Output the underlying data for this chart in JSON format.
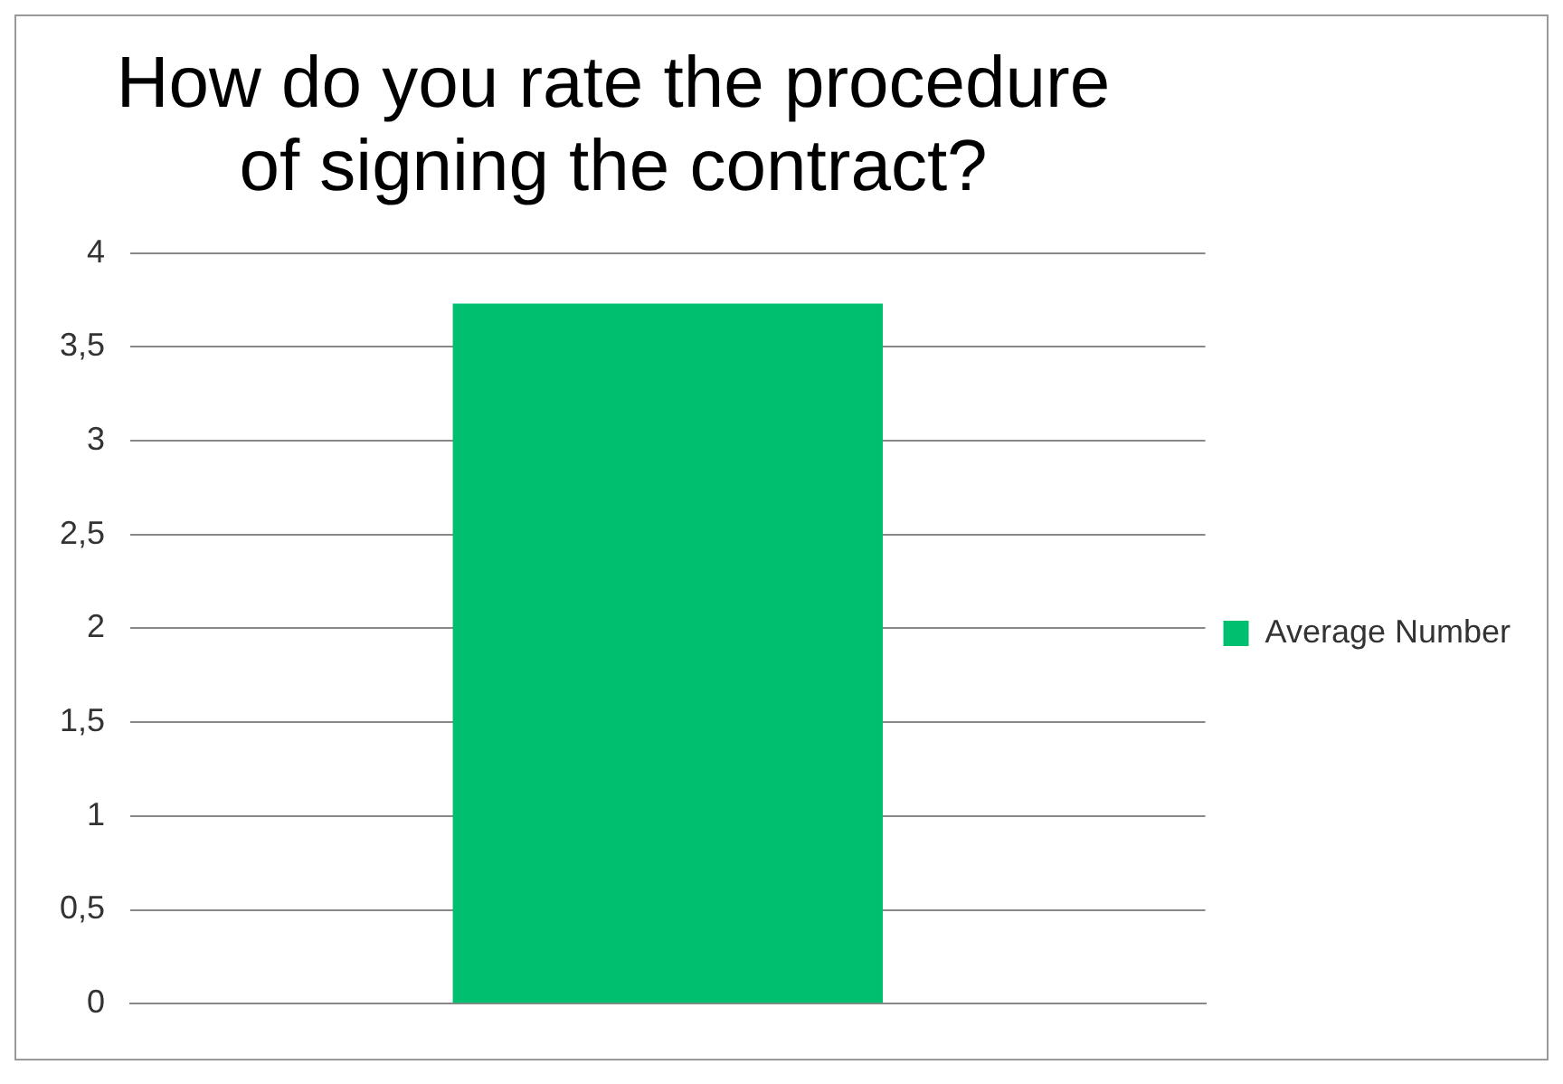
{
  "chart_data": {
    "type": "bar",
    "title": "How do you rate the procedure of signing the contract?",
    "categories": [
      null
    ],
    "series": [
      {
        "name": "Average Number",
        "color": "#00c070",
        "values": [
          3.73
        ]
      }
    ],
    "ylim": [
      0,
      4
    ],
    "yticks": [
      0,
      {
        "value": 0.5,
        "label": "0,5"
      },
      1,
      {
        "value": 1.5,
        "label": "1,5"
      },
      2,
      {
        "value": 2.5,
        "label": "2,5"
      },
      3,
      {
        "value": 3.5,
        "label": "3,5"
      },
      4
    ],
    "grid": "y",
    "legend": "right"
  }
}
